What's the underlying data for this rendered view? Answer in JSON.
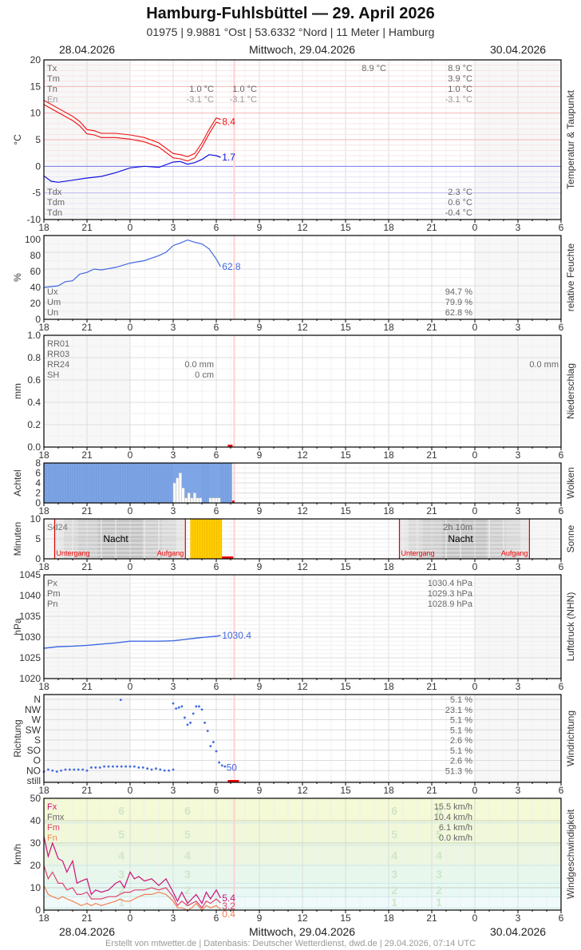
{
  "header": {
    "title": "Hamburg-Fuhlsbüttel  —  29. April 2026",
    "subtitle": "01975  |  9.9881 °Ost  |  53.6332 °Nord  |  11 Meter  |  Hamburg"
  },
  "datebar_top": {
    "left": "28.04.2026",
    "center": "Mittwoch, 29.04.2026",
    "right": "30.04.2026"
  },
  "datebar_bottom": {
    "left": "28.04.2026",
    "center": "Mittwoch, 29.04.2026",
    "right": "30.04.2026"
  },
  "footer": "Erstellt von mtwetter.de | Datenbasis: Deutscher Wetterdienst, dwd.de | 29.04.2026, 07:14 UTC",
  "x_ticks": [
    "18",
    "21",
    "0",
    "3",
    "6",
    "9",
    "12",
    "15",
    "18",
    "21",
    "0",
    "3",
    "6"
  ],
  "colors": {
    "temp": "#ee1111",
    "dew": "#1111dd",
    "humidity": "#4169e1",
    "clouds": "#7ea6e6",
    "sun": "#ffcc00",
    "sunline": "#dd0000",
    "pressure": "#4169e1",
    "gust": "#cc1177",
    "wind_mean": "#e0406a",
    "wind_min": "#f08050"
  },
  "chart_data": [
    {
      "type": "line",
      "title": "Temperatur & Taupunkt",
      "ylabel": "°C",
      "ylim": [
        -10,
        20
      ],
      "yticks": [
        "20",
        "15",
        "10",
        "5",
        "0",
        "-5",
        "-10"
      ],
      "legend_top": [
        "Tx",
        "Tm",
        "Tn",
        "En"
      ],
      "legend_bottom": [
        "Tdx",
        "Tdm",
        "Tdn"
      ],
      "day1_values": {
        "Tn": "1.0 °C",
        "En": "-3.1 °C"
      },
      "day1b_values": {
        "Tn": "1.0 °C",
        "En": "-3.1 °C"
      },
      "day2_peak": "8.9 °C",
      "summary_top": {
        "Tx": "8.9 °C",
        "Tm": "3.9 °C",
        "Tn": "1.0 °C",
        "En": "-3.1 °C"
      },
      "summary_bottom": {
        "Tdx": "2.3 °C",
        "Tdm": "0.6 °C",
        "Tdn": "-0.4 °C"
      },
      "series": [
        {
          "name": "Temperatur",
          "x_hours": [
            18,
            19,
            20,
            20.5,
            21,
            21.5,
            22,
            23,
            24,
            25,
            26,
            27,
            27.5,
            28,
            28.5,
            29,
            29.5,
            30,
            30.3
          ],
          "values": [
            12,
            10.5,
            9,
            8,
            6.5,
            6.3,
            5.8,
            5.8,
            5.5,
            5,
            4,
            2,
            1.8,
            1.4,
            2,
            4,
            6.5,
            8.7,
            8.4
          ]
        },
        {
          "name": "Taupunkt",
          "x_hours": [
            18,
            18.5,
            19,
            20,
            21,
            22,
            23,
            24,
            25,
            26,
            27,
            27.5,
            28,
            28.5,
            29,
            29.5,
            30,
            30.3
          ],
          "values": [
            -1.8,
            -2.8,
            -3,
            -2.6,
            -2.2,
            -1.9,
            -1.2,
            -0.3,
            0,
            -0.2,
            0.8,
            0.9,
            0.4,
            0.7,
            1.3,
            2.2,
            2,
            1.7
          ]
        }
      ],
      "last_value_temp": "8.4",
      "last_value_dew": "1.7"
    },
    {
      "type": "line",
      "title": "relative Feuchte",
      "ylabel": "%",
      "ylim": [
        0,
        100
      ],
      "yticks": [
        "100",
        "80",
        "60",
        "40",
        "20",
        "0"
      ],
      "legend": [
        "Ux",
        "Um",
        "Un"
      ],
      "summary": {
        "Ux": "94.7 %",
        "Um": "79.9 %",
        "Un": "62.8 %"
      },
      "series": [
        {
          "name": "Feuchte",
          "x_hours": [
            18,
            19,
            19.5,
            20,
            20.5,
            21,
            21.5,
            22,
            23,
            24,
            25,
            26,
            26.5,
            27,
            27.5,
            28,
            28.5,
            29,
            29.5,
            30,
            30.3
          ],
          "values": [
            38,
            40,
            45,
            46,
            54,
            56,
            60,
            59,
            62,
            67,
            70,
            76,
            80,
            88,
            91,
            94.7,
            92,
            90,
            84,
            72,
            62.8
          ]
        }
      ],
      "last_value": "62.8"
    },
    {
      "type": "bar",
      "title": "Niederschlag",
      "ylabel": "mm",
      "ylim": [
        0,
        1.0
      ],
      "yticks": [
        "1.0",
        "0.8",
        "0.6",
        "0.4",
        "0.2",
        "0.0"
      ],
      "legend": [
        "RR01",
        "RR03",
        "RR24",
        "SH"
      ],
      "day1_values": {
        "RR24": "0.0 mm",
        "SH": "0 cm"
      },
      "summary": {
        "RR24": "0.0 mm"
      }
    },
    {
      "type": "bar",
      "title": "Wolken",
      "ylabel": "Achtel",
      "ylim": [
        0,
        8
      ],
      "yticks": [
        "8",
        "6",
        "4",
        "2",
        "0"
      ],
      "overcast_until_hour": 31.1,
      "gaps": [
        {
          "x": 27.0,
          "v": 4
        },
        {
          "x": 27.2,
          "v": 5
        },
        {
          "x": 27.4,
          "v": 6
        },
        {
          "x": 27.6,
          "v": 3
        },
        {
          "x": 27.8,
          "v": 1
        },
        {
          "x": 28.0,
          "v": 2
        },
        {
          "x": 28.2,
          "v": 1
        },
        {
          "x": 28.4,
          "v": 2
        },
        {
          "x": 28.6,
          "v": 1
        },
        {
          "x": 28.8,
          "v": 1
        },
        {
          "x": 29.5,
          "v": 1
        },
        {
          "x": 29.7,
          "v": 1
        },
        {
          "x": 29.9,
          "v": 1
        },
        {
          "x": 30.1,
          "v": 1
        }
      ]
    },
    {
      "type": "bar",
      "title": "Sonne",
      "ylabel": "Minuten",
      "ylim": [
        0,
        10
      ],
      "yticks": [
        "10",
        "5",
        "0"
      ],
      "legend": [
        "Sd24"
      ],
      "night_label": "Nacht",
      "sunset_label": "Untergang",
      "sunrise_label": "Aufgang",
      "sunshine_total": "2h 10m",
      "sunset1_hour": 18.75,
      "sunrise1_hour": 27.85,
      "sunset2_hour": 42.75,
      "sunrise2_hour": 51.8,
      "sunshine_from": 28.2,
      "sunshine_to": 30.4
    },
    {
      "type": "line",
      "title": "Luftdruck (NHN)",
      "ylabel": "hPa",
      "ylim": [
        1020,
        1045
      ],
      "yticks": [
        "1045",
        "1040",
        "1035",
        "1030",
        "1025",
        "1020"
      ],
      "legend": [
        "Px",
        "Pm",
        "Pn"
      ],
      "summary": {
        "Px": "1030.4 hPa",
        "Pm": "1029.3 hPa",
        "Pn": "1028.9 hPa"
      },
      "series": [
        {
          "name": "Luftdruck",
          "x_hours": [
            18,
            19,
            20,
            21,
            22,
            23,
            24,
            25,
            26,
            27,
            28,
            29,
            30,
            30.3
          ],
          "values": [
            1027.3,
            1027.7,
            1027.8,
            1028.0,
            1028.3,
            1028.6,
            1029.0,
            1029.0,
            1029.0,
            1029.1,
            1029.5,
            1029.9,
            1030.2,
            1030.4
          ]
        }
      ],
      "last_value": "1030.4"
    },
    {
      "type": "scatter",
      "title": "Windrichtung",
      "ylabel": "Richtung",
      "yticks": [
        "N",
        "NW",
        "W",
        "SW",
        "S",
        "SO",
        "O",
        "NO",
        "still"
      ],
      "summary": [
        "5.1 %",
        "23.1 %",
        "5.1 %",
        "5.1 %",
        "2.6 %",
        "5.1 %",
        "2.6 %",
        "51.3 %"
      ],
      "last_value": "50",
      "points": [
        [
          18,
          7.1
        ],
        [
          18.3,
          6.9
        ],
        [
          18.6,
          7.0
        ],
        [
          18.9,
          7.1
        ],
        [
          19.2,
          7.0
        ],
        [
          19.5,
          6.9
        ],
        [
          19.8,
          6.9
        ],
        [
          20.1,
          6.9
        ],
        [
          20.4,
          6.9
        ],
        [
          20.7,
          6.9
        ],
        [
          21.0,
          7.0
        ],
        [
          21.3,
          6.7
        ],
        [
          21.6,
          6.7
        ],
        [
          21.9,
          6.7
        ],
        [
          22.2,
          6.6
        ],
        [
          22.5,
          6.6
        ],
        [
          22.8,
          6.6
        ],
        [
          23.1,
          6.6
        ],
        [
          23.4,
          6.6
        ],
        [
          23.7,
          6.6
        ],
        [
          24.0,
          6.6
        ],
        [
          24.3,
          6.6
        ],
        [
          24.6,
          6.7
        ],
        [
          24.9,
          6.7
        ],
        [
          25.2,
          6.8
        ],
        [
          25.5,
          6.9
        ],
        [
          25.8,
          6.8
        ],
        [
          26.1,
          6.9
        ],
        [
          26.4,
          7.0
        ],
        [
          26.7,
          7.0
        ],
        [
          27.0,
          6.9
        ],
        [
          23.35,
          0.05
        ],
        [
          27.0,
          0.4
        ],
        [
          27.2,
          0.9
        ],
        [
          27.4,
          0.8
        ],
        [
          27.6,
          0.7
        ],
        [
          27.8,
          1.8
        ],
        [
          28.0,
          2.5
        ],
        [
          28.2,
          2.3
        ],
        [
          28.4,
          1.4
        ],
        [
          28.6,
          0.7
        ],
        [
          28.8,
          0.7
        ],
        [
          29.0,
          1.0
        ],
        [
          29.2,
          2.3
        ],
        [
          29.4,
          3.1
        ],
        [
          29.6,
          4.6
        ],
        [
          29.8,
          4.2
        ],
        [
          30.0,
          5.1
        ],
        [
          30.2,
          6.2
        ],
        [
          30.4,
          6.5
        ],
        [
          30.6,
          6.6
        ]
      ]
    },
    {
      "type": "line",
      "title": "Windgeschwindigkeit",
      "ylabel": "km/h",
      "ylim": [
        0,
        50
      ],
      "yticks": [
        "50",
        "40",
        "30",
        "20",
        "10",
        "0"
      ],
      "legend": [
        "Fx",
        "Fmx",
        "Fm",
        "Fn"
      ],
      "summary": {
        "Fx": "15.5 km/h",
        "Fmx": "10.4 km/h",
        "Fm": "6.1 km/h",
        "Fn": "0.0 km/h"
      },
      "beaufort_labels": [
        "6",
        "5",
        "4",
        "3",
        "2",
        "1"
      ],
      "series": [
        {
          "name": "Fx",
          "x_hours": [
            18,
            18.3,
            18.6,
            19,
            19.3,
            19.6,
            20,
            20.3,
            20.6,
            21,
            21.3,
            21.6,
            22,
            22.5,
            23,
            23.3,
            23.6,
            24,
            24.3,
            24.6,
            25,
            25.5,
            26,
            26.5,
            27,
            27.3,
            27.6,
            28,
            28.3,
            28.6,
            29,
            29.3,
            29.6,
            30,
            30.3
          ],
          "values": [
            33,
            24,
            30,
            23,
            22,
            17,
            22,
            12,
            13,
            14,
            7,
            9,
            8,
            9,
            12,
            13,
            10,
            17,
            14,
            15,
            13,
            14,
            11,
            14,
            8,
            4,
            8,
            3,
            5,
            7,
            3,
            8,
            5,
            9,
            5.4
          ]
        },
        {
          "name": "Fm",
          "x_hours": [
            18,
            18.3,
            18.6,
            19,
            19.3,
            19.6,
            20,
            20.3,
            20.6,
            21,
            21.3,
            21.6,
            22,
            22.5,
            23,
            23.3,
            23.6,
            24,
            24.3,
            24.6,
            25,
            25.5,
            26,
            26.5,
            27,
            27.3,
            27.6,
            28,
            28.3,
            28.6,
            29,
            29.3,
            29.6,
            30,
            30.3
          ],
          "values": [
            20,
            14,
            17,
            12,
            12,
            9,
            10,
            7,
            7,
            8,
            5,
            5,
            5,
            6,
            6,
            7,
            8,
            8,
            9,
            9,
            9,
            10,
            9,
            10,
            6,
            2,
            4,
            2,
            3,
            4,
            1,
            4,
            3,
            5,
            3.2
          ]
        },
        {
          "name": "Fn",
          "x_hours": [
            18,
            18.3,
            18.6,
            19,
            19.3,
            19.6,
            20,
            20.3,
            20.6,
            21,
            21.3,
            21.6,
            22,
            22.5,
            23,
            23.3,
            23.6,
            24,
            24.3,
            24.6,
            25,
            25.5,
            26,
            26.5,
            27,
            27.3,
            27.6,
            28,
            28.3,
            28.6,
            29,
            29.3,
            29.6,
            30,
            30.3
          ],
          "values": [
            11,
            7,
            6,
            5,
            6,
            5,
            4,
            3,
            2,
            3,
            2,
            3,
            2,
            3,
            4,
            5,
            4,
            4,
            5,
            6,
            7,
            7,
            8,
            7,
            4,
            1,
            1,
            0,
            1,
            3,
            0,
            2,
            1,
            2,
            0.4
          ]
        }
      ],
      "last_values": {
        "Fx": "5.4",
        "Fm": "3.2",
        "Fn": "0.4"
      }
    }
  ]
}
